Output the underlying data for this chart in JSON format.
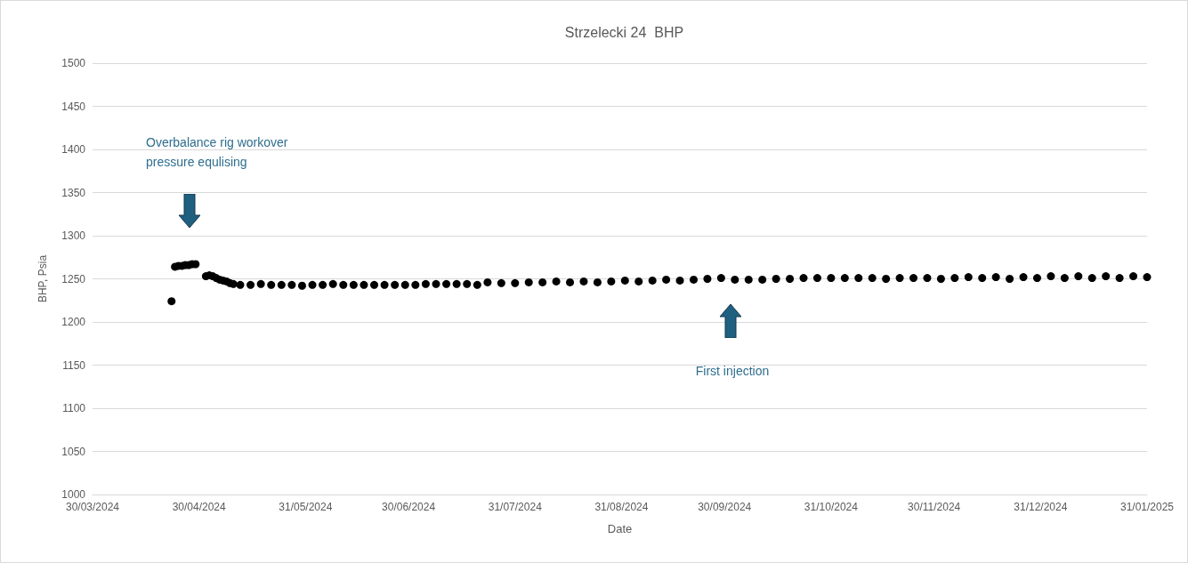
{
  "chart_data": {
    "type": "scatter",
    "title": "Strzelecki 24  BHP",
    "xlabel": "Date",
    "ylabel": "BHP, Psia",
    "marker": "circle",
    "grid": "y",
    "xlim": [
      "2024-03-30",
      "2025-01-31"
    ],
    "xticks": [
      {
        "value": "2024-03-30",
        "label": "30/03/2024"
      },
      {
        "value": "2024-04-30",
        "label": "30/04/2024"
      },
      {
        "value": "2024-05-31",
        "label": "31/05/2024"
      },
      {
        "value": "2024-06-30",
        "label": "30/06/2024"
      },
      {
        "value": "2024-07-31",
        "label": "31/07/2024"
      },
      {
        "value": "2024-08-31",
        "label": "31/08/2024"
      },
      {
        "value": "2024-09-30",
        "label": "30/09/2024"
      },
      {
        "value": "2024-10-31",
        "label": "31/10/2024"
      },
      {
        "value": "2024-11-30",
        "label": "30/11/2024"
      },
      {
        "value": "2024-12-31",
        "label": "31/12/2024"
      },
      {
        "value": "2025-01-31",
        "label": "31/01/2025"
      }
    ],
    "ylim": [
      1000,
      1500
    ],
    "yticks": [
      1000,
      1050,
      1100,
      1150,
      1200,
      1250,
      1300,
      1350,
      1400,
      1450,
      1500
    ],
    "annotations": [
      "Overbalance rig workover pressure equlising",
      "First injection"
    ],
    "series": [
      {
        "color": "#000000",
        "x": [
          "2024-04-22",
          "2024-04-23",
          "2024-04-24",
          "2024-04-25",
          "2024-04-26",
          "2024-04-27",
          "2024-04-28",
          "2024-04-29",
          "2024-05-02",
          "2024-05-03",
          "2024-05-04",
          "2024-05-05",
          "2024-05-06",
          "2024-05-07",
          "2024-05-08",
          "2024-05-09",
          "2024-05-10",
          "2024-05-12",
          "2024-05-15",
          "2024-05-18",
          "2024-05-21",
          "2024-05-24",
          "2024-05-27",
          "2024-05-30",
          "2024-06-02",
          "2024-06-05",
          "2024-06-08",
          "2024-06-11",
          "2024-06-14",
          "2024-06-17",
          "2024-06-20",
          "2024-06-23",
          "2024-06-26",
          "2024-06-29",
          "2024-07-02",
          "2024-07-05",
          "2024-07-08",
          "2024-07-11",
          "2024-07-14",
          "2024-07-17",
          "2024-07-20",
          "2024-07-23",
          "2024-07-27",
          "2024-07-31",
          "2024-08-04",
          "2024-08-08",
          "2024-08-12",
          "2024-08-16",
          "2024-08-20",
          "2024-08-24",
          "2024-08-28",
          "2024-09-01",
          "2024-09-05",
          "2024-09-09",
          "2024-09-13",
          "2024-09-17",
          "2024-09-21",
          "2024-09-25",
          "2024-09-29",
          "2024-10-03",
          "2024-10-07",
          "2024-10-11",
          "2024-10-15",
          "2024-10-19",
          "2024-10-23",
          "2024-10-27",
          "2024-10-31",
          "2024-11-04",
          "2024-11-08",
          "2024-11-12",
          "2024-11-16",
          "2024-11-20",
          "2024-11-24",
          "2024-11-28",
          "2024-12-02",
          "2024-12-06",
          "2024-12-10",
          "2024-12-14",
          "2024-12-18",
          "2024-12-22",
          "2024-12-26",
          "2024-12-30",
          "2025-01-03",
          "2025-01-07",
          "2025-01-11",
          "2025-01-15",
          "2025-01-19",
          "2025-01-23",
          "2025-01-27",
          "2025-01-31"
        ],
        "values": [
          1224,
          1264,
          1265,
          1265,
          1266,
          1266,
          1267,
          1267,
          1253,
          1254,
          1253,
          1251,
          1249,
          1248,
          1247,
          1245,
          1244,
          1243,
          1243,
          1244,
          1243,
          1243,
          1243,
          1242,
          1243,
          1243,
          1244,
          1243,
          1243,
          1243,
          1243,
          1243,
          1243,
          1243,
          1243,
          1244,
          1244,
          1244,
          1244,
          1244,
          1243,
          1246,
          1245,
          1245,
          1246,
          1246,
          1247,
          1246,
          1247,
          1246,
          1247,
          1248,
          1247,
          1248,
          1249,
          1248,
          1249,
          1250,
          1251,
          1249,
          1249,
          1249,
          1250,
          1250,
          1251,
          1251,
          1251,
          1251,
          1251,
          1251,
          1250,
          1251,
          1251,
          1251,
          1250,
          1251,
          1252,
          1251,
          1252,
          1250,
          1252,
          1251,
          1253,
          1251,
          1253,
          1251,
          1253,
          1251,
          1253,
          1252
        ]
      }
    ]
  }
}
